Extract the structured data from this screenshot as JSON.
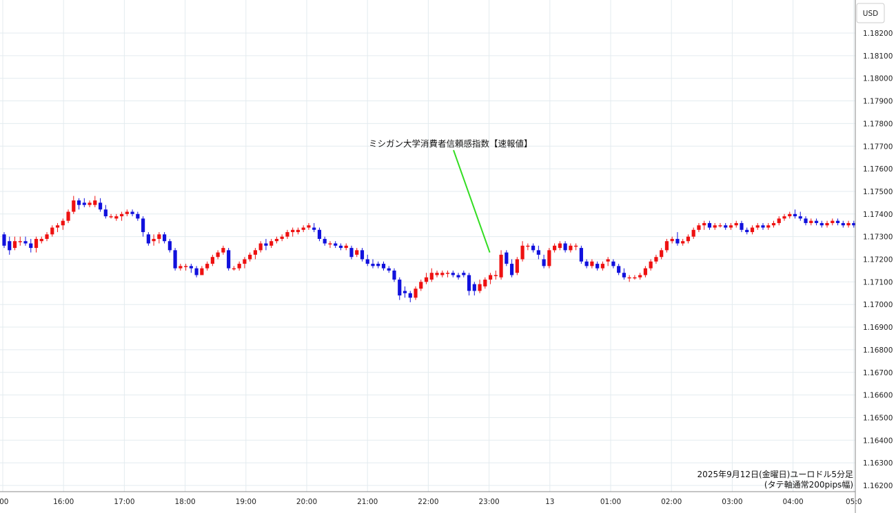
{
  "chart_data": {
    "type": "candlestick",
    "currency": "USD",
    "caption": [
      "2025年9月12日(金曜日)ユーロドル5分足",
      "(タテ軸通常200pips幅)"
    ],
    "y_ticks": [
      "1.18200",
      "1.18100",
      "1.18000",
      "1.17900",
      "1.17800",
      "1.17700",
      "1.17600",
      "1.17500",
      "1.17400",
      "1.17300",
      "1.17200",
      "1.17100",
      "1.17000",
      "1.16900",
      "1.16800",
      "1.16700",
      "1.16600",
      "1.16500",
      "1.16400",
      "1.16300",
      "1.16200"
    ],
    "ylim": [
      1.1619,
      1.1829
    ],
    "x_ticks": [
      {
        "label": ":00",
        "t": 0
      },
      {
        "label": "16:00",
        "t": 1
      },
      {
        "label": "17:00",
        "t": 2
      },
      {
        "label": "18:00",
        "t": 3
      },
      {
        "label": "19:00",
        "t": 4
      },
      {
        "label": "20:00",
        "t": 5
      },
      {
        "label": "21:00",
        "t": 6
      },
      {
        "label": "22:00",
        "t": 7
      },
      {
        "label": "23:00",
        "t": 8
      },
      {
        "label": "13",
        "t": 9
      },
      {
        "label": "01:00",
        "t": 10
      },
      {
        "label": "02:00",
        "t": 11
      },
      {
        "label": "03:00",
        "t": 12
      },
      {
        "label": "04:00",
        "t": 13
      },
      {
        "label": "05:0",
        "t": 14
      }
    ],
    "annotation": {
      "text": "ミシガン大学消費者信頼感指数【速報値】",
      "at_hour": 8,
      "price": 1.1723
    },
    "candles": [
      [
        1.1731,
        1.1732,
        1.1725,
        1.1726
      ],
      [
        1.1728,
        1.173,
        1.1722,
        1.1724
      ],
      [
        1.1725,
        1.173,
        1.1724,
        1.1728
      ],
      [
        1.1728,
        1.173,
        1.1726,
        1.1728
      ],
      [
        1.1728,
        1.173,
        1.1726,
        1.1727
      ],
      [
        1.1727,
        1.1729,
        1.1723,
        1.1725
      ],
      [
        1.1725,
        1.173,
        1.1723,
        1.1729
      ],
      [
        1.1728,
        1.173,
        1.1727,
        1.1729
      ],
      [
        1.1729,
        1.1732,
        1.1728,
        1.1731
      ],
      [
        1.1731,
        1.1735,
        1.173,
        1.1734
      ],
      [
        1.1734,
        1.1736,
        1.1732,
        1.1735
      ],
      [
        1.1735,
        1.1738,
        1.1733,
        1.1737
      ],
      [
        1.1737,
        1.1742,
        1.1736,
        1.1741
      ],
      [
        1.1741,
        1.1748,
        1.174,
        1.1746
      ],
      [
        1.1746,
        1.1747,
        1.1742,
        1.1744
      ],
      [
        1.1745,
        1.1747,
        1.1743,
        1.1744
      ],
      [
        1.1744,
        1.1746,
        1.1743,
        1.1745
      ],
      [
        1.1744,
        1.1748,
        1.1743,
        1.1746
      ],
      [
        1.1745,
        1.1747,
        1.1741,
        1.1742
      ],
      [
        1.1742,
        1.1744,
        1.1738,
        1.1739
      ],
      [
        1.1739,
        1.174,
        1.1738,
        1.1739
      ],
      [
        1.1738,
        1.174,
        1.1737,
        1.1739
      ],
      [
        1.1739,
        1.1741,
        1.1737,
        1.174
      ],
      [
        1.174,
        1.1742,
        1.1739,
        1.1741
      ],
      [
        1.1741,
        1.1742,
        1.1739,
        1.174
      ],
      [
        1.174,
        1.1741,
        1.1737,
        1.1738
      ],
      [
        1.1738,
        1.1739,
        1.173,
        1.1732
      ],
      [
        1.1731,
        1.1732,
        1.1726,
        1.1727
      ],
      [
        1.1728,
        1.1731,
        1.1726,
        1.1729
      ],
      [
        1.1729,
        1.1732,
        1.1727,
        1.1731
      ],
      [
        1.1731,
        1.1732,
        1.1727,
        1.1728
      ],
      [
        1.1728,
        1.1729,
        1.1723,
        1.1724
      ],
      [
        1.1724,
        1.1725,
        1.1715,
        1.1716
      ],
      [
        1.1716,
        1.1718,
        1.1715,
        1.1717
      ],
      [
        1.1717,
        1.1718,
        1.1715,
        1.1717
      ],
      [
        1.1717,
        1.1718,
        1.1714,
        1.1716
      ],
      [
        1.1716,
        1.1717,
        1.1712,
        1.1713
      ],
      [
        1.1713,
        1.1717,
        1.1713,
        1.1716
      ],
      [
        1.1716,
        1.1719,
        1.1715,
        1.1718
      ],
      [
        1.1718,
        1.1722,
        1.1717,
        1.1721
      ],
      [
        1.1721,
        1.1724,
        1.172,
        1.1723
      ],
      [
        1.1723,
        1.1726,
        1.1722,
        1.1725
      ],
      [
        1.1724,
        1.1725,
        1.1715,
        1.1716
      ],
      [
        1.1716,
        1.1717,
        1.1715,
        1.1716
      ],
      [
        1.1716,
        1.1719,
        1.1715,
        1.1718
      ],
      [
        1.1718,
        1.1721,
        1.1716,
        1.172
      ],
      [
        1.172,
        1.1723,
        1.1719,
        1.1722
      ],
      [
        1.1722,
        1.1725,
        1.172,
        1.1724
      ],
      [
        1.1724,
        1.1728,
        1.1723,
        1.1727
      ],
      [
        1.1727,
        1.1729,
        1.1724,
        1.1726
      ],
      [
        1.1726,
        1.1729,
        1.1725,
        1.1728
      ],
      [
        1.1728,
        1.173,
        1.1727,
        1.1729
      ],
      [
        1.1729,
        1.1731,
        1.1728,
        1.173
      ],
      [
        1.173,
        1.1733,
        1.1729,
        1.1732
      ],
      [
        1.1732,
        1.1734,
        1.173,
        1.1733
      ],
      [
        1.1732,
        1.1734,
        1.1731,
        1.1733
      ],
      [
        1.1733,
        1.1735,
        1.1732,
        1.1734
      ],
      [
        1.1734,
        1.1736,
        1.1733,
        1.1735
      ],
      [
        1.1734,
        1.1736,
        1.1732,
        1.1733
      ],
      [
        1.1733,
        1.1734,
        1.1728,
        1.1729
      ],
      [
        1.1729,
        1.173,
        1.1726,
        1.1727
      ],
      [
        1.1727,
        1.1728,
        1.1725,
        1.1727
      ],
      [
        1.1727,
        1.1728,
        1.1725,
        1.1726
      ],
      [
        1.1726,
        1.1727,
        1.1724,
        1.1725
      ],
      [
        1.1725,
        1.1727,
        1.1724,
        1.1726
      ],
      [
        1.1725,
        1.1726,
        1.172,
        1.1721
      ],
      [
        1.1722,
        1.1725,
        1.1721,
        1.1724
      ],
      [
        1.1724,
        1.1725,
        1.1719,
        1.172
      ],
      [
        1.172,
        1.1722,
        1.1717,
        1.1718
      ],
      [
        1.1718,
        1.172,
        1.1716,
        1.1717
      ],
      [
        1.1718,
        1.1719,
        1.1716,
        1.1717
      ],
      [
        1.1718,
        1.1719,
        1.1715,
        1.1716
      ],
      [
        1.1716,
        1.1717,
        1.1714,
        1.1715
      ],
      [
        1.1715,
        1.1716,
        1.171,
        1.1711
      ],
      [
        1.1711,
        1.1712,
        1.1702,
        1.1704
      ],
      [
        1.1706,
        1.1708,
        1.1703,
        1.1705
      ],
      [
        1.1705,
        1.1706,
        1.1701,
        1.1703
      ],
      [
        1.1703,
        1.1708,
        1.1702,
        1.1707
      ],
      [
        1.1707,
        1.1711,
        1.1706,
        1.171
      ],
      [
        1.171,
        1.1714,
        1.1709,
        1.1712
      ],
      [
        1.1711,
        1.1716,
        1.171,
        1.1714
      ],
      [
        1.1713,
        1.1715,
        1.1712,
        1.1714
      ],
      [
        1.1713,
        1.1715,
        1.1712,
        1.1714
      ],
      [
        1.1714,
        1.1715,
        1.1712,
        1.1714
      ],
      [
        1.1714,
        1.1715,
        1.1712,
        1.1713
      ],
      [
        1.1713,
        1.1714,
        1.1711,
        1.1712
      ],
      [
        1.1714,
        1.1715,
        1.1712,
        1.1713
      ],
      [
        1.1713,
        1.1714,
        1.1704,
        1.1706
      ],
      [
        1.1709,
        1.171,
        1.1704,
        1.1706
      ],
      [
        1.1706,
        1.1711,
        1.1705,
        1.1709
      ],
      [
        1.1708,
        1.1712,
        1.1707,
        1.1711
      ],
      [
        1.1711,
        1.1714,
        1.1709,
        1.1713
      ],
      [
        1.1713,
        1.1715,
        1.1711,
        1.1713
      ],
      [
        1.1712,
        1.1724,
        1.1711,
        1.1722
      ],
      [
        1.1723,
        1.1724,
        1.1717,
        1.1718
      ],
      [
        1.1718,
        1.172,
        1.1712,
        1.1713
      ],
      [
        1.1714,
        1.1721,
        1.1713,
        1.172
      ],
      [
        1.172,
        1.1728,
        1.1719,
        1.1726
      ],
      [
        1.1726,
        1.1727,
        1.1724,
        1.1726
      ],
      [
        1.1726,
        1.1727,
        1.1723,
        1.1724
      ],
      [
        1.1724,
        1.1726,
        1.172,
        1.1722
      ],
      [
        1.172,
        1.1722,
        1.1716,
        1.1717
      ],
      [
        1.1717,
        1.1725,
        1.1716,
        1.1724
      ],
      [
        1.1724,
        1.1727,
        1.1723,
        1.1726
      ],
      [
        1.1725,
        1.1728,
        1.1724,
        1.1727
      ],
      [
        1.1727,
        1.1728,
        1.1723,
        1.1724
      ],
      [
        1.1724,
        1.1727,
        1.1723,
        1.1726
      ],
      [
        1.1726,
        1.1727,
        1.1724,
        1.1726
      ],
      [
        1.1725,
        1.1726,
        1.1718,
        1.1719
      ],
      [
        1.1719,
        1.172,
        1.1716,
        1.1717
      ],
      [
        1.1717,
        1.172,
        1.1716,
        1.1719
      ],
      [
        1.1718,
        1.1719,
        1.1715,
        1.1716
      ],
      [
        1.1716,
        1.1719,
        1.1715,
        1.1718
      ],
      [
        1.1719,
        1.1721,
        1.1717,
        1.172
      ],
      [
        1.1719,
        1.172,
        1.1716,
        1.1717
      ],
      [
        1.1717,
        1.1718,
        1.1713,
        1.1714
      ],
      [
        1.1714,
        1.1716,
        1.1711,
        1.1712
      ],
      [
        1.1712,
        1.1713,
        1.171,
        1.1712
      ],
      [
        1.1712,
        1.1713,
        1.1711,
        1.1712
      ],
      [
        1.1712,
        1.1714,
        1.1711,
        1.1713
      ],
      [
        1.1713,
        1.1717,
        1.1712,
        1.1716
      ],
      [
        1.1716,
        1.172,
        1.1715,
        1.1719
      ],
      [
        1.1719,
        1.1722,
        1.1718,
        1.1721
      ],
      [
        1.1721,
        1.1725,
        1.172,
        1.1724
      ],
      [
        1.1724,
        1.1729,
        1.1723,
        1.1728
      ],
      [
        1.1728,
        1.173,
        1.1727,
        1.1729
      ],
      [
        1.1729,
        1.1732,
        1.1726,
        1.1727
      ],
      [
        1.1727,
        1.1729,
        1.1726,
        1.1728
      ],
      [
        1.1728,
        1.1731,
        1.1727,
        1.173
      ],
      [
        1.173,
        1.1734,
        1.1729,
        1.1733
      ],
      [
        1.1733,
        1.1736,
        1.1732,
        1.1735
      ],
      [
        1.1735,
        1.1737,
        1.1733,
        1.1736
      ],
      [
        1.1736,
        1.1737,
        1.1733,
        1.1734
      ],
      [
        1.1734,
        1.1736,
        1.1733,
        1.1735
      ],
      [
        1.1735,
        1.1736,
        1.1734,
        1.1735
      ],
      [
        1.1735,
        1.1736,
        1.1733,
        1.1734
      ],
      [
        1.1734,
        1.1736,
        1.1733,
        1.1735
      ],
      [
        1.1735,
        1.1737,
        1.1734,
        1.1736
      ],
      [
        1.1736,
        1.1737,
        1.1732,
        1.1733
      ],
      [
        1.1733,
        1.1734,
        1.1731,
        1.1732
      ],
      [
        1.1732,
        1.1735,
        1.1731,
        1.1734
      ],
      [
        1.1734,
        1.1736,
        1.1733,
        1.1735
      ],
      [
        1.1735,
        1.1736,
        1.1733,
        1.1734
      ],
      [
        1.1734,
        1.1736,
        1.1733,
        1.1735
      ],
      [
        1.1735,
        1.1737,
        1.1734,
        1.1736
      ],
      [
        1.1736,
        1.1739,
        1.1735,
        1.1738
      ],
      [
        1.1738,
        1.174,
        1.1737,
        1.1739
      ],
      [
        1.1739,
        1.1741,
        1.1738,
        1.174
      ],
      [
        1.174,
        1.1742,
        1.1738,
        1.1739
      ],
      [
        1.1739,
        1.1741,
        1.1737,
        1.1738
      ],
      [
        1.1738,
        1.1739,
        1.1735,
        1.1736
      ],
      [
        1.1736,
        1.1738,
        1.1735,
        1.1737
      ],
      [
        1.1737,
        1.1738,
        1.1735,
        1.1736
      ],
      [
        1.1736,
        1.1737,
        1.1734,
        1.1735
      ],
      [
        1.1735,
        1.1737,
        1.1734,
        1.1736
      ],
      [
        1.1736,
        1.1738,
        1.1735,
        1.1737
      ],
      [
        1.1737,
        1.1738,
        1.1735,
        1.1736
      ],
      [
        1.1736,
        1.1737,
        1.1734,
        1.1735
      ],
      [
        1.1735,
        1.1737,
        1.1734,
        1.1736
      ],
      [
        1.1736,
        1.1737,
        1.1734,
        1.1735
      ]
    ]
  }
}
